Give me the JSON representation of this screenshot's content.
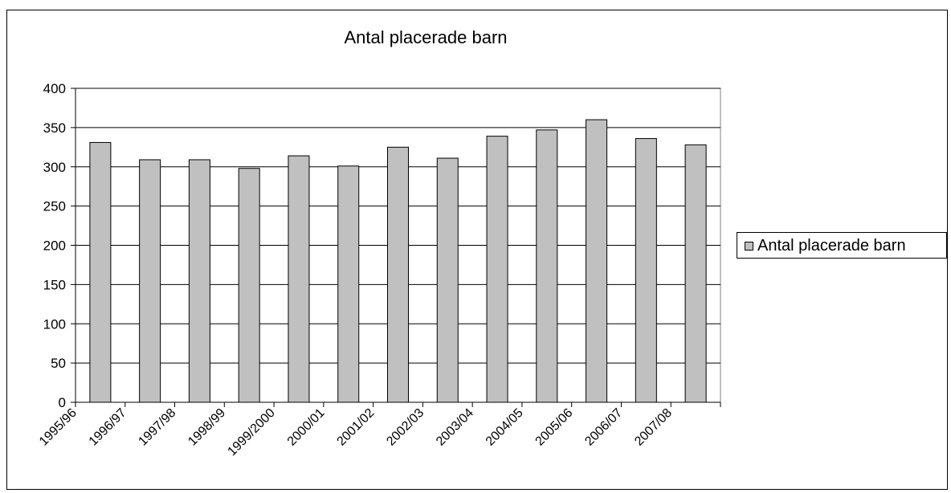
{
  "chart_data": {
    "type": "bar",
    "title": "Antal placerade barn",
    "xlabel": "",
    "ylabel": "",
    "categories": [
      "1995/96",
      "1996/97",
      "1997/98",
      "1998/99",
      "1999/2000",
      "2000/01",
      "2001/02",
      "2002/03",
      "2003/04",
      "2004/05",
      "2005/06",
      "2006/07",
      "2007/08"
    ],
    "series": [
      {
        "name": "Antal placerade barn",
        "values": [
          331,
          309,
          309,
          298,
          314,
          301,
          325,
          311,
          339,
          347,
          360,
          336,
          328
        ]
      }
    ],
    "ylim": [
      0,
      400
    ],
    "yticks": [
      0,
      50,
      100,
      150,
      200,
      250,
      300,
      350,
      400
    ],
    "grid": true,
    "legend_position": "right",
    "colors": {
      "bar_fill": "#c0c0c0",
      "bar_stroke": "#000000",
      "grid": "#000000",
      "background": "#ffffff"
    }
  }
}
